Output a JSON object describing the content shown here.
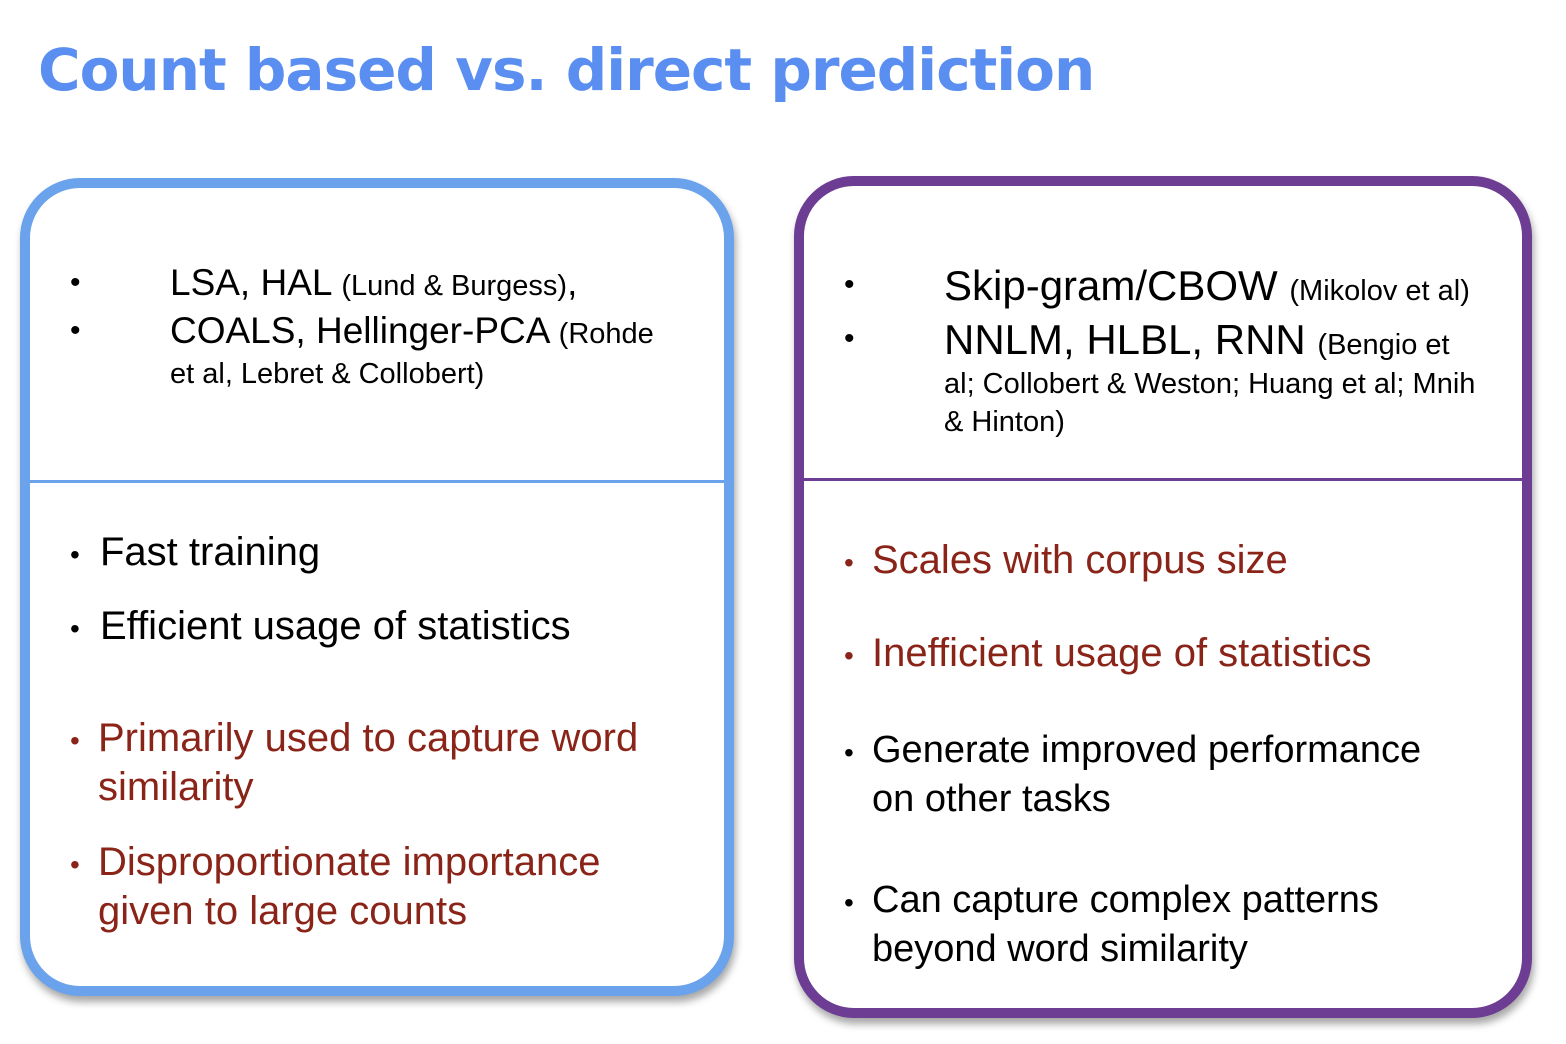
{
  "slide": {
    "title": "Count based vs. direct prediction",
    "title_color": "#5a8ef0",
    "left_panel": {
      "border_color": "#6aa2ec",
      "methods": [
        {
          "bullet": "•",
          "main": "LSA, HAL ",
          "cite_lines": [
            "(Lund & Burgess)"
          ],
          "tail": ","
        },
        {
          "bullet": "•",
          "main": "COALS, Hellinger-PCA ",
          "cite_lines": [
            "(Rohde",
            "et al, Lebret & Collobert)"
          ],
          "tail": ""
        }
      ],
      "points": [
        {
          "bullet": "•",
          "lines": [
            "Fast training"
          ],
          "color": "#000000"
        },
        {
          "bullet": "•",
          "lines": [
            "Efficient usage of statistics"
          ],
          "color": "#000000"
        },
        {
          "bullet": "•",
          "lines": [
            "Primarily used to capture word",
            "similarity"
          ],
          "color": "#8b2418"
        },
        {
          "bullet": "•",
          "lines": [
            "Disproportionate importance",
            "given to large counts"
          ],
          "color": "#8b2418"
        }
      ]
    },
    "right_panel": {
      "border_color": "#6c3d92",
      "methods": [
        {
          "bullet": "•",
          "main": "Skip-gram/CBOW ",
          "cite_lines": [
            "(Mikolov et al)"
          ],
          "tail": ""
        },
        {
          "bullet": "•",
          "main": "NNLM, HLBL, RNN ",
          "cite_lines": [
            "(Bengio et",
            "al; Collobert & Weston; Huang et al; Mnih",
            "& Hinton)"
          ],
          "tail": ""
        }
      ],
      "points": [
        {
          "bullet": "•",
          "lines": [
            "Scales with corpus size"
          ],
          "color": "#8b2418"
        },
        {
          "bullet": "•",
          "lines": [
            "Inefficient usage of statistics"
          ],
          "color": "#8b2418"
        },
        {
          "bullet": "•",
          "lines": [
            "Generate improved performance",
            "on other tasks"
          ],
          "color": "#000000"
        },
        {
          "bullet": "•",
          "lines": [
            "Can capture complex patterns",
            "beyond word similarity"
          ],
          "color": "#000000"
        }
      ]
    }
  }
}
